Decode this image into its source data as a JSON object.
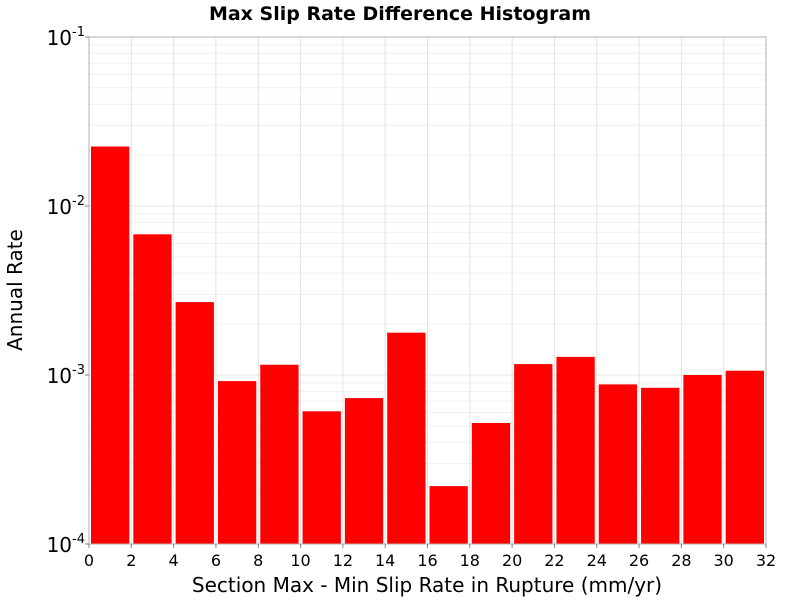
{
  "chart_data": {
    "type": "bar",
    "title": "Max Slip Rate Difference Histogram",
    "xlabel": "Section Max - Min Slip Rate in Rupture (mm/yr)",
    "ylabel": "Annual Rate",
    "xlim": [
      0,
      32
    ],
    "ylim": [
      0.0001,
      0.1
    ],
    "yscale": "log",
    "grid": true,
    "bar_color": "#ff0000",
    "bin_width": 2,
    "x": [
      1,
      3,
      5,
      7,
      9,
      11,
      13,
      15,
      17,
      19,
      21,
      23,
      25,
      27,
      29,
      31
    ],
    "values": [
      0.0225,
      0.0068,
      0.0027,
      0.00092,
      0.00115,
      0.00061,
      0.00073,
      0.00178,
      0.00022,
      0.00052,
      0.00116,
      0.00128,
      0.00088,
      0.00084,
      0.001,
      0.00106
    ],
    "xticks": [
      "0",
      "2",
      "4",
      "6",
      "8",
      "10",
      "12",
      "14",
      "16",
      "18",
      "20",
      "22",
      "24",
      "26",
      "28",
      "30",
      "32"
    ],
    "yticks": [
      {
        "base": "10",
        "exp": "-4"
      },
      {
        "base": "10",
        "exp": "-3"
      },
      {
        "base": "10",
        "exp": "-2"
      },
      {
        "base": "10",
        "exp": "-1"
      }
    ]
  }
}
